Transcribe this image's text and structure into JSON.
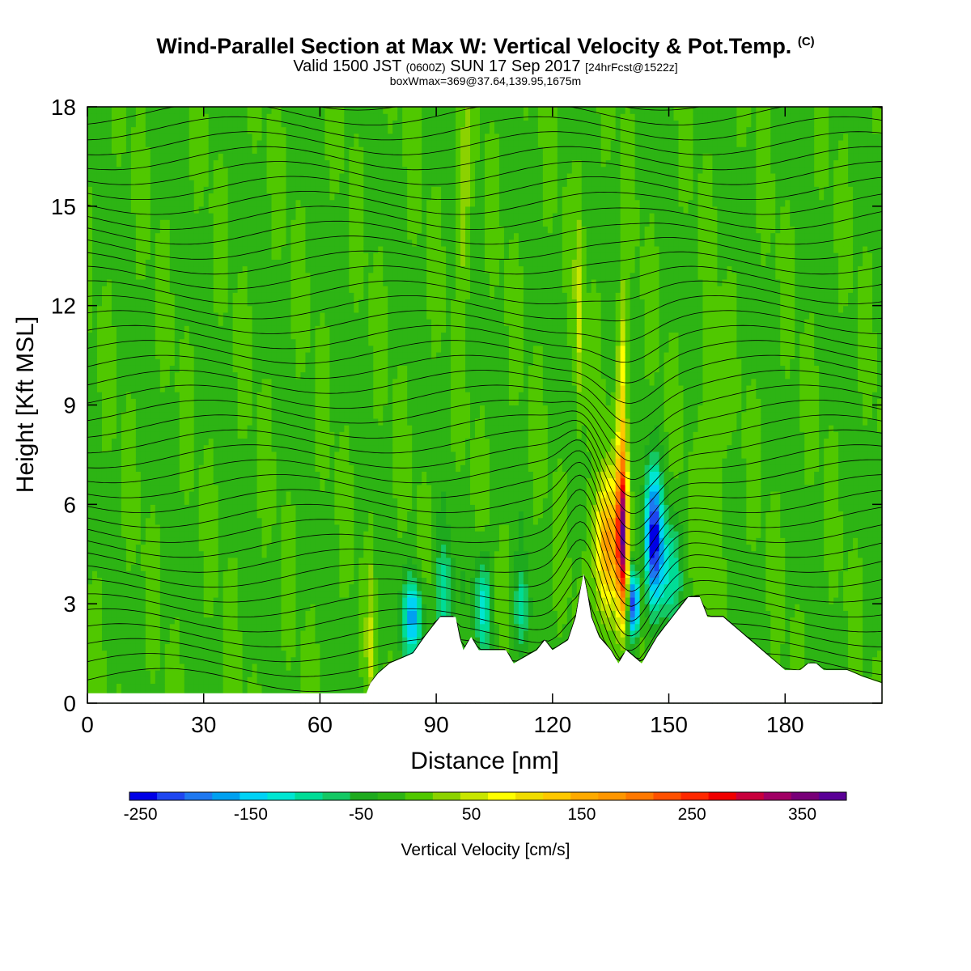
{
  "header": {
    "title": "Wind-Parallel Section at Max W: Vertical Velocity & Pot.Temp.",
    "copyright": "(C)",
    "valid_prefix": "Valid 1500 JST",
    "valid_utc": "(0600Z)",
    "valid_date": "SUN 17 Sep 2017",
    "forecast": "[24hrFcst@1522z]",
    "box_info": "boxWmax=369@37.64,139.95,1675m"
  },
  "chart_data": {
    "type": "heatmap",
    "xlabel": "Distance [nm]",
    "ylabel": "Height [Kft MSL]",
    "xlim": [
      0,
      205
    ],
    "ylim": [
      0,
      18
    ],
    "x_ticks": [
      0,
      30,
      60,
      90,
      120,
      150,
      180
    ],
    "x_tick_labels": [
      "0",
      "30",
      "60",
      "90",
      "120",
      "150",
      "180"
    ],
    "y_ticks": [
      0,
      3,
      6,
      9,
      12,
      15,
      18
    ],
    "y_tick_labels": [
      "0",
      "3",
      "6",
      "9",
      "12",
      "15",
      "18"
    ],
    "terrain": [
      [
        0,
        0.3
      ],
      [
        72,
        0.3
      ],
      [
        73,
        0.6
      ],
      [
        75,
        0.9
      ],
      [
        78,
        1.2
      ],
      [
        84,
        1.5
      ],
      [
        87,
        2.0
      ],
      [
        91,
        2.6
      ],
      [
        95,
        2.6
      ],
      [
        96,
        2.0
      ],
      [
        97,
        1.6
      ],
      [
        99,
        2.0
      ],
      [
        101,
        1.6
      ],
      [
        104,
        1.6
      ],
      [
        108,
        1.6
      ],
      [
        110,
        1.2
      ],
      [
        113,
        1.4
      ],
      [
        116,
        1.6
      ],
      [
        118,
        1.9
      ],
      [
        120,
        1.6
      ],
      [
        124,
        1.9
      ],
      [
        126,
        2.6
      ],
      [
        127,
        3.3
      ],
      [
        128,
        3.9
      ],
      [
        129,
        3.3
      ],
      [
        130,
        2.6
      ],
      [
        132,
        2.0
      ],
      [
        135,
        1.6
      ],
      [
        136,
        1.4
      ],
      [
        137,
        1.2
      ],
      [
        139,
        1.6
      ],
      [
        141,
        1.4
      ],
      [
        143,
        1.2
      ],
      [
        145,
        1.6
      ],
      [
        147,
        2.0
      ],
      [
        149,
        2.3
      ],
      [
        151,
        2.6
      ],
      [
        153,
        2.9
      ],
      [
        155,
        3.2
      ],
      [
        158,
        3.2
      ],
      [
        160,
        2.6
      ],
      [
        164,
        2.6
      ],
      [
        168,
        2.2
      ],
      [
        172,
        1.8
      ],
      [
        176,
        1.4
      ],
      [
        180,
        1.0
      ],
      [
        184,
        1.0
      ],
      [
        186,
        1.2
      ],
      [
        188,
        1.2
      ],
      [
        190,
        1.0
      ],
      [
        196,
        1.0
      ],
      [
        200,
        0.8
      ],
      [
        205,
        0.6
      ]
    ],
    "vertical_velocity_features": [
      {
        "x": 73,
        "y": 1.5,
        "w": 45,
        "dx": 1.0,
        "dy": 3.0
      },
      {
        "x": 84,
        "y": 2.6,
        "w": -150,
        "dx": 2.5,
        "dy": 1.2
      },
      {
        "x": 92,
        "y": 3.2,
        "w": -100,
        "dx": 2.2,
        "dy": 1.6
      },
      {
        "x": 102,
        "y": 3.0,
        "w": -110,
        "dx": 2.0,
        "dy": 1.5
      },
      {
        "x": 112,
        "y": 2.8,
        "w": -80,
        "dx": 2.0,
        "dy": 1.3
      },
      {
        "x": 127,
        "y": 11.5,
        "w": 60,
        "dx": 1.2,
        "dy": 3.5
      },
      {
        "x": 97,
        "y": 15.0,
        "w": 45,
        "dx": 1.8,
        "dy": 3.0
      },
      {
        "x": 134,
        "y": 4.8,
        "w": 190,
        "dx": 3.0,
        "dy": 2.0
      },
      {
        "x": 138,
        "y": 5.0,
        "w": 340,
        "dx": 1.4,
        "dy": 2.4
      },
      {
        "x": 138,
        "y": 9.5,
        "w": 100,
        "dx": 1.2,
        "dy": 3.0
      },
      {
        "x": 141,
        "y": 3.0,
        "w": -240,
        "dx": 1.3,
        "dy": 1.0
      },
      {
        "x": 146,
        "y": 5.0,
        "w": -220,
        "dx": 2.2,
        "dy": 2.0
      },
      {
        "x": 150,
        "y": 4.0,
        "w": -90,
        "dx": 3.0,
        "dy": 1.8
      },
      {
        "x": 161,
        "y": 7.0,
        "w": 40,
        "dx": 2.5,
        "dy": 3.5
      }
    ],
    "colorbar": {
      "label": "Vertical Velocity [cm/s]",
      "tick_values": [
        -250,
        -150,
        -50,
        50,
        150,
        250,
        350
      ],
      "tick_labels": [
        "-250",
        "-150",
        "-50",
        "50",
        "150",
        "250",
        "350"
      ],
      "colors": [
        "#0000e6",
        "#1e46f0",
        "#1e78f0",
        "#00a0f0",
        "#00d2f5",
        "#00e6d2",
        "#00dc96",
        "#14c864",
        "#1eaa1e",
        "#2db414",
        "#50c800",
        "#8cd200",
        "#c8e600",
        "#ffff00",
        "#f0dc00",
        "#ffc800",
        "#ffaa00",
        "#ff9600",
        "#ff7800",
        "#ff5000",
        "#ff2800",
        "#f00000",
        "#c8003c",
        "#a00064",
        "#780078",
        "#5a0096"
      ]
    }
  }
}
